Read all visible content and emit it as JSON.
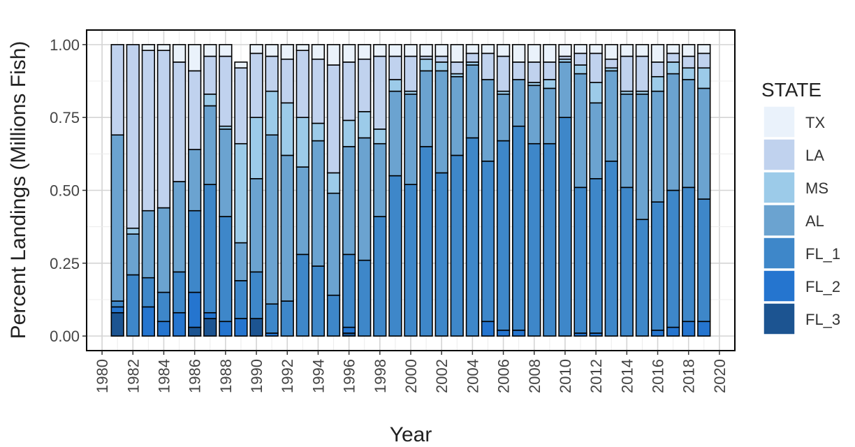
{
  "chart_data": {
    "type": "bar",
    "stacked": true,
    "xlabel": "Year",
    "ylabel": "Percent Landings (Millions Fish)",
    "xlim": [
      1979,
      2021
    ],
    "ylim": [
      -0.05,
      1.05
    ],
    "x_ticks": [
      "1980",
      "1982",
      "1984",
      "1986",
      "1988",
      "1990",
      "1992",
      "1994",
      "1996",
      "1998",
      "2000",
      "2002",
      "2004",
      "2006",
      "2008",
      "2010",
      "2012",
      "2014",
      "2016",
      "2018",
      "2020"
    ],
    "y_ticks": [
      "0.00",
      "0.25",
      "0.50",
      "0.75",
      "1.00"
    ],
    "grid": true,
    "legend_title": "STATE",
    "legend_position": "right",
    "categories": [
      "1981",
      "1982",
      "1983",
      "1984",
      "1985",
      "1986",
      "1987",
      "1988",
      "1989",
      "1990",
      "1991",
      "1992",
      "1993",
      "1994",
      "1995",
      "1996",
      "1997",
      "1998",
      "1999",
      "2000",
      "2001",
      "2002",
      "2003",
      "2004",
      "2005",
      "2006",
      "2007",
      "2008",
      "2009",
      "2010",
      "2011",
      "2012",
      "2013",
      "2014",
      "2015",
      "2016",
      "2017",
      "2018",
      "2019"
    ],
    "series": [
      {
        "name": "FL_3",
        "color": "#1c5491",
        "values": [
          0.08,
          0.0,
          0.0,
          0.0,
          0.0,
          0.03,
          0.06,
          0.0,
          0.0,
          0.06,
          0.0,
          0.0,
          0.0,
          0.0,
          0.0,
          0.01,
          0.0,
          0.0,
          0.0,
          0.0,
          0.0,
          0.0,
          0.0,
          0.0,
          0.0,
          0.0,
          0.0,
          0.0,
          0.0,
          0.0,
          0.0,
          0.0,
          0.0,
          0.0,
          0.0,
          0.0,
          0.0,
          0.0,
          0.0
        ]
      },
      {
        "name": "FL_2",
        "color": "#2575cf",
        "values": [
          0.02,
          0.0,
          0.1,
          0.05,
          0.08,
          0.12,
          0.02,
          0.05,
          0.06,
          0.0,
          0.01,
          0.0,
          0.0,
          0.0,
          0.0,
          0.02,
          0.0,
          0.0,
          0.0,
          0.0,
          0.0,
          0.0,
          0.0,
          0.0,
          0.05,
          0.02,
          0.02,
          0.0,
          0.0,
          0.0,
          0.01,
          0.01,
          0.0,
          0.0,
          0.0,
          0.02,
          0.03,
          0.05,
          0.05
        ]
      },
      {
        "name": "FL_1",
        "color": "#3e87c9",
        "values": [
          0.02,
          0.21,
          0.1,
          0.1,
          0.14,
          0.28,
          0.44,
          0.36,
          0.13,
          0.16,
          0.1,
          0.12,
          0.28,
          0.24,
          0.14,
          0.25,
          0.26,
          0.41,
          0.55,
          0.52,
          0.65,
          0.56,
          0.62,
          0.68,
          0.55,
          0.65,
          0.7,
          0.66,
          0.66,
          0.75,
          0.5,
          0.53,
          0.6,
          0.51,
          0.4,
          0.44,
          0.47,
          0.46,
          0.42
        ]
      },
      {
        "name": "AL",
        "color": "#6ba3d0",
        "values": [
          0.57,
          0.14,
          0.23,
          0.29,
          0.31,
          0.21,
          0.27,
          0.3,
          0.13,
          0.32,
          0.58,
          0.5,
          0.3,
          0.43,
          0.35,
          0.37,
          0.42,
          0.25,
          0.29,
          0.31,
          0.26,
          0.35,
          0.27,
          0.25,
          0.28,
          0.16,
          0.16,
          0.2,
          0.19,
          0.19,
          0.39,
          0.26,
          0.31,
          0.32,
          0.43,
          0.38,
          0.4,
          0.37,
          0.38
        ]
      },
      {
        "name": "MS",
        "color": "#9ccbe9",
        "values": [
          0.0,
          0.02,
          0.0,
          0.0,
          0.0,
          0.0,
          0.04,
          0.01,
          0.34,
          0.21,
          0.15,
          0.18,
          0.17,
          0.06,
          0.07,
          0.09,
          0.09,
          0.05,
          0.04,
          0.01,
          0.04,
          0.03,
          0.01,
          0.01,
          0.0,
          0.01,
          0.0,
          0.01,
          0.03,
          0.01,
          0.03,
          0.07,
          0.01,
          0.01,
          0.01,
          0.05,
          0.04,
          0.04,
          0.07
        ]
      },
      {
        "name": "LA",
        "color": "#c0d2ee",
        "values": [
          0.31,
          0.63,
          0.55,
          0.54,
          0.41,
          0.27,
          0.13,
          0.24,
          0.26,
          0.22,
          0.12,
          0.15,
          0.23,
          0.22,
          0.37,
          0.2,
          0.18,
          0.25,
          0.08,
          0.12,
          0.01,
          0.02,
          0.04,
          0.03,
          0.09,
          0.12,
          0.06,
          0.07,
          0.06,
          0.01,
          0.04,
          0.1,
          0.03,
          0.12,
          0.12,
          0.05,
          0.03,
          0.04,
          0.05
        ]
      },
      {
        "name": "TX",
        "color": "#eaf2fb",
        "values": [
          0.0,
          0.0,
          0.02,
          0.02,
          0.06,
          0.09,
          0.04,
          0.04,
          0.02,
          0.03,
          0.04,
          0.05,
          0.02,
          0.05,
          0.07,
          0.06,
          0.05,
          0.04,
          0.04,
          0.04,
          0.04,
          0.04,
          0.06,
          0.03,
          0.03,
          0.04,
          0.06,
          0.06,
          0.06,
          0.04,
          0.03,
          0.03,
          0.05,
          0.04,
          0.04,
          0.06,
          0.03,
          0.04,
          0.03
        ]
      }
    ]
  }
}
